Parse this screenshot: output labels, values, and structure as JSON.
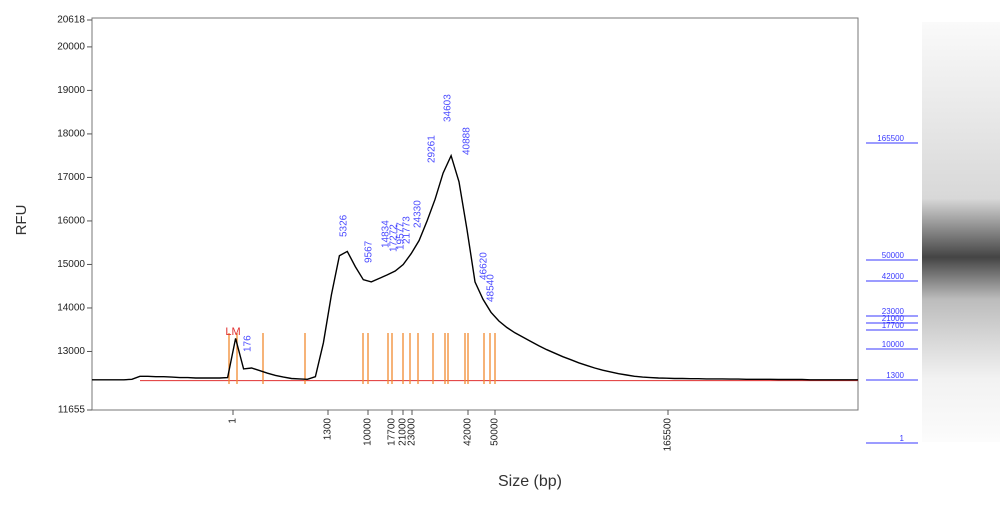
{
  "chart_data": {
    "type": "line",
    "y_label": "RFU",
    "x_label": "Size (bp)",
    "color": "#000000",
    "ylim": [
      11655,
      20618
    ],
    "yticks": [
      11655,
      13000,
      14000,
      15000,
      16000,
      17000,
      18000,
      19000,
      20000,
      20618
    ],
    "xticks": [
      1,
      1300,
      10000,
      17700,
      21000,
      23000,
      42000,
      50000,
      165500
    ],
    "values": [
      12350,
      12350,
      12350,
      12350,
      12350,
      12360,
      12430,
      12430,
      12420,
      12420,
      12410,
      12400,
      12400,
      12390,
      12390,
      12390,
      12390,
      12400,
      13300,
      12600,
      12620,
      12560,
      12500,
      12450,
      12410,
      12380,
      12370,
      12360,
      12420,
      13200,
      14300,
      15200,
      15300,
      14950,
      14650,
      14600,
      14680,
      14760,
      14850,
      15000,
      15250,
      15550,
      16000,
      16500,
      17100,
      17500,
      16900,
      15800,
      14600,
      14200,
      13900,
      13700,
      13550,
      13430,
      13330,
      13230,
      13130,
      13040,
      12960,
      12880,
      12810,
      12740,
      12680,
      12620,
      12570,
      12530,
      12490,
      12460,
      12430,
      12410,
      12400,
      12390,
      12385,
      12380,
      12380,
      12375,
      12375,
      12370,
      12370,
      12370,
      12365,
      12365,
      12360,
      12360,
      12360,
      12360,
      12355,
      12355,
      12355,
      12355,
      12350,
      12350,
      12350,
      12350,
      12350,
      12350,
      12350
    ],
    "annotations": [
      "LM",
      176,
      5326,
      9567,
      14834,
      17272,
      19577,
      21773,
      24330,
      29261,
      34603,
      40888,
      46620,
      48540
    ],
    "gel_ladder": [
      165500,
      50000,
      42000,
      23000,
      21000,
      17700,
      10000,
      1300,
      1
    ]
  }
}
